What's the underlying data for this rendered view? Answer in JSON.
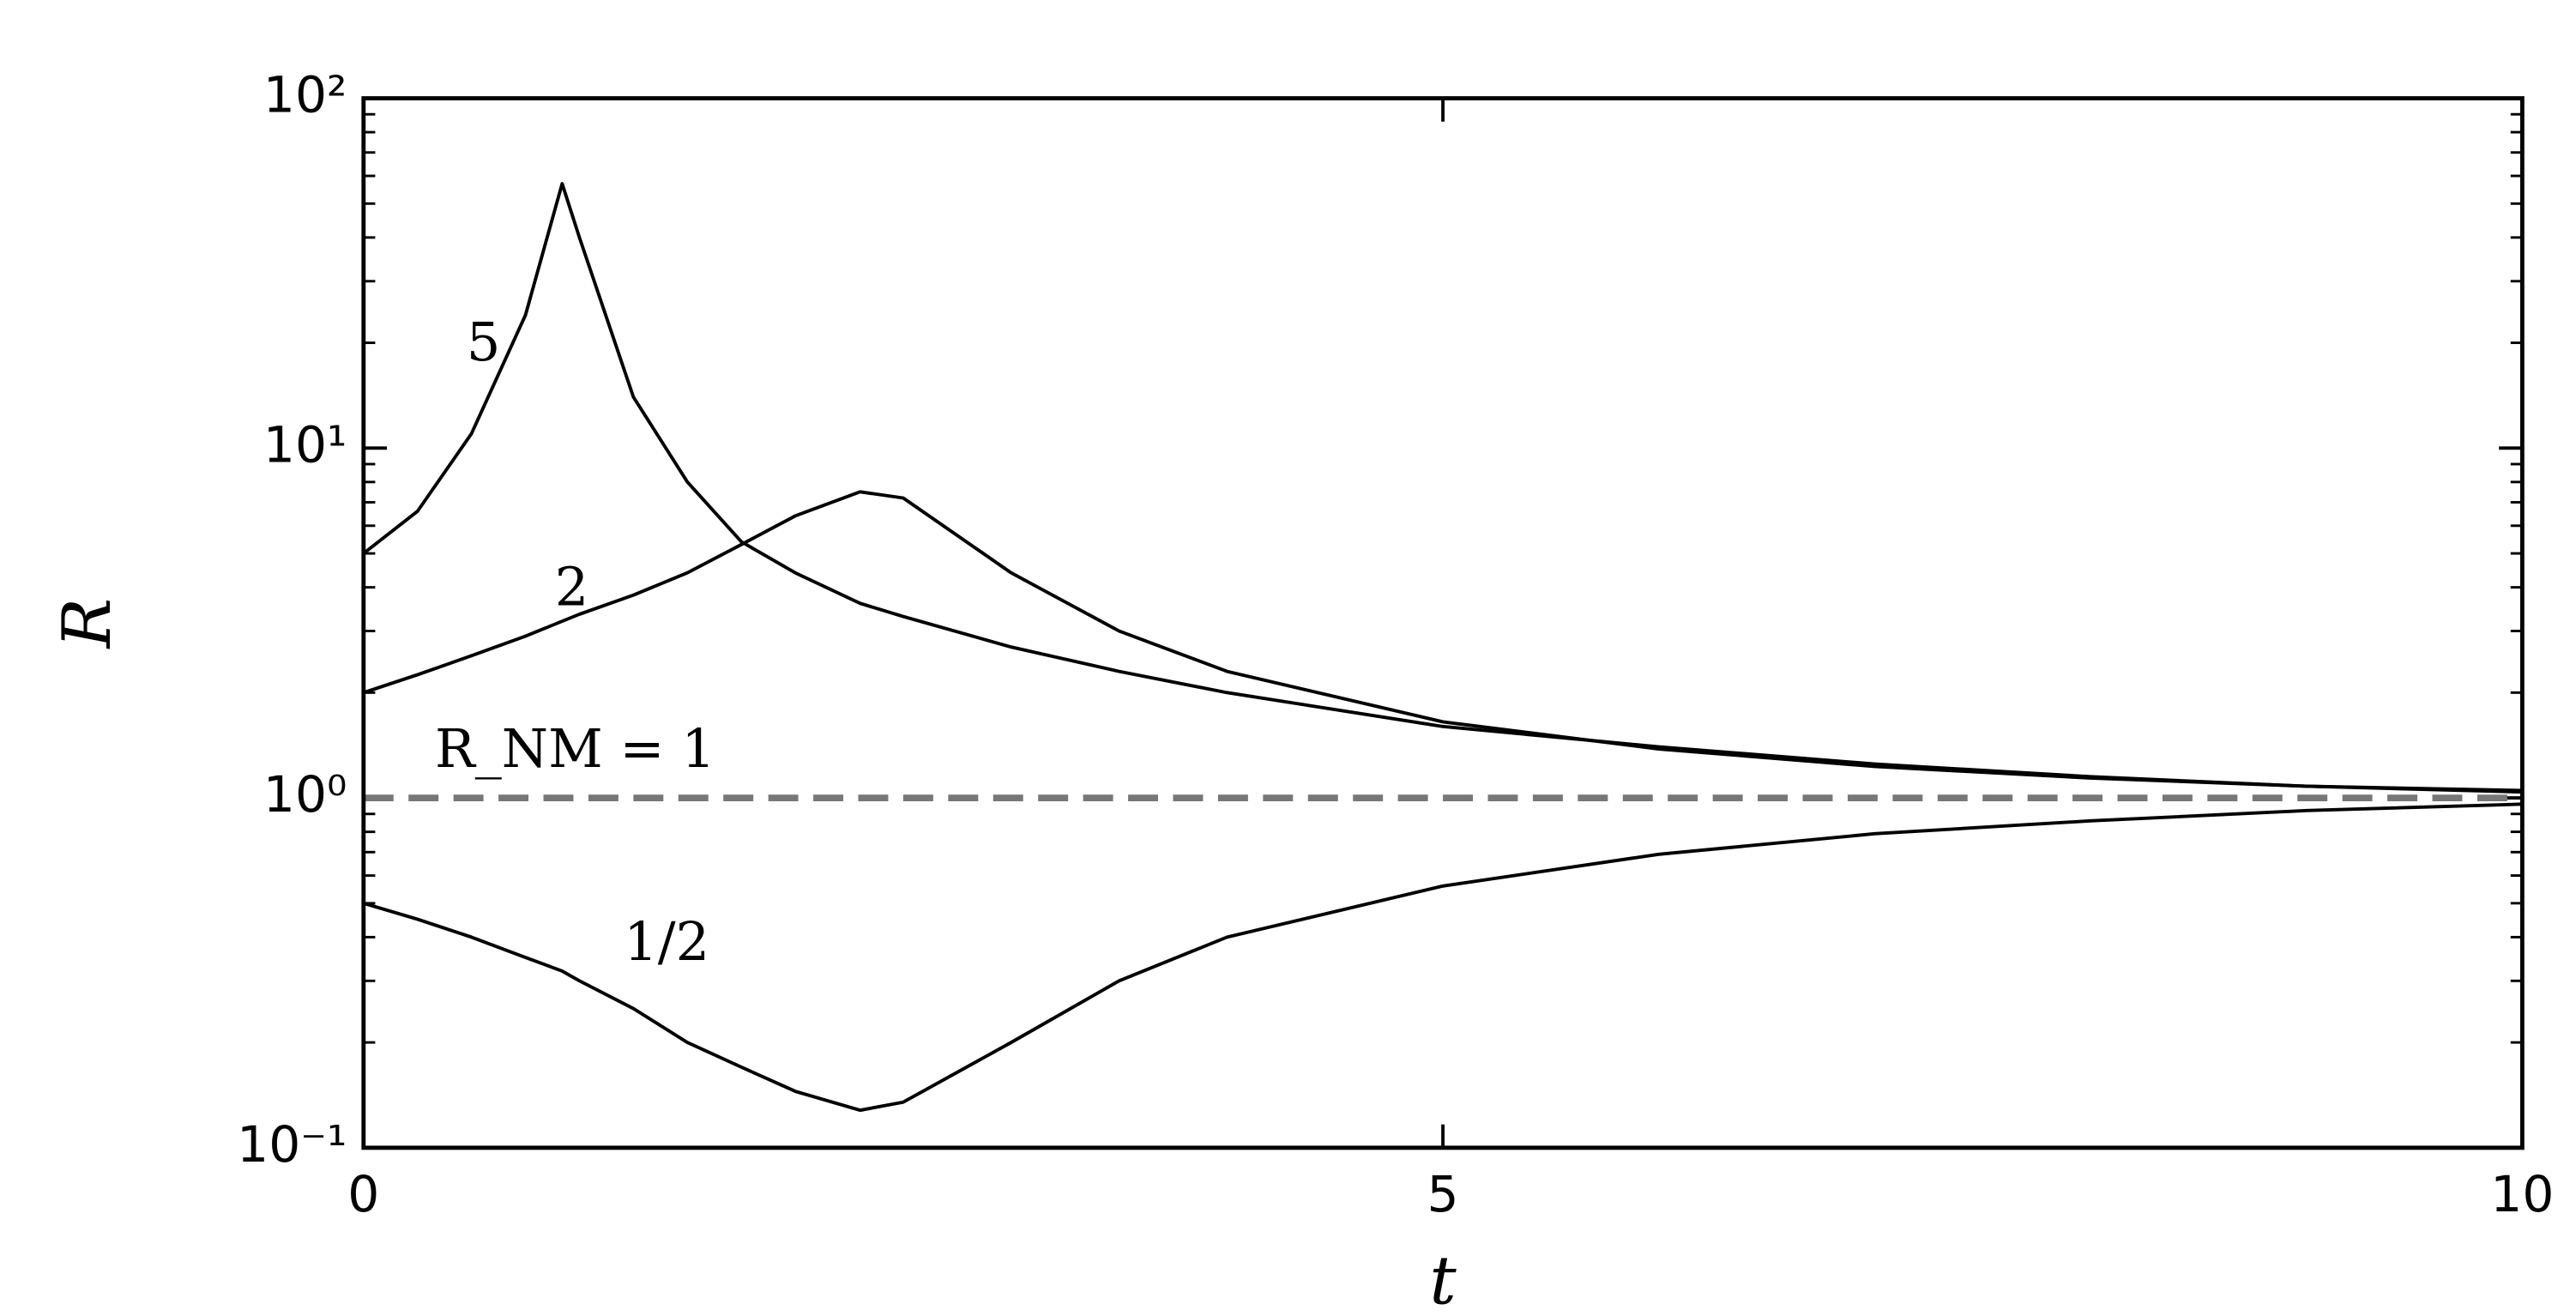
{
  "chart_data": {
    "type": "line",
    "xlabel": "t",
    "ylabel": "R",
    "x": [
      0,
      0.25,
      0.5,
      0.75,
      0.92,
      1,
      1.25,
      1.5,
      1.75,
      2,
      2.3,
      2.5,
      3,
      3.5,
      4,
      5,
      6,
      7,
      8,
      9,
      10
    ],
    "series": [
      {
        "name": "5",
        "color": "#000000",
        "dashed": false,
        "values": [
          5,
          6.6,
          11,
          24,
          57,
          40,
          14,
          8,
          5.4,
          4.4,
          3.6,
          3.3,
          2.7,
          2.3,
          2.0,
          1.6,
          1.4,
          1.25,
          1.15,
          1.08,
          1.04
        ]
      },
      {
        "name": "2",
        "color": "#000000",
        "dashed": false,
        "values": [
          2,
          2.25,
          2.55,
          2.9,
          3.2,
          3.35,
          3.8,
          4.4,
          5.3,
          6.4,
          7.5,
          7.2,
          4.4,
          3.0,
          2.3,
          1.65,
          1.38,
          1.23,
          1.14,
          1.08,
          1.05
        ]
      },
      {
        "name": "1/2",
        "color": "#000000",
        "dashed": false,
        "values": [
          0.5,
          0.45,
          0.4,
          0.35,
          0.32,
          0.3,
          0.25,
          0.2,
          0.17,
          0.145,
          0.128,
          0.135,
          0.2,
          0.3,
          0.4,
          0.56,
          0.69,
          0.79,
          0.86,
          0.92,
          0.96
        ]
      },
      {
        "name": "R_NM = 1",
        "color": "#777777",
        "dashed": true,
        "values": [
          1,
          1,
          1,
          1,
          1,
          1,
          1,
          1,
          1,
          1,
          1,
          1,
          1,
          1,
          1,
          1,
          1,
          1,
          1,
          1,
          1
        ]
      }
    ],
    "xlim": [
      0,
      10
    ],
    "xticks": [
      0,
      5,
      10
    ],
    "ylim": [
      0.1,
      100
    ],
    "ylog": true,
    "yticks": [
      {
        "value": 0.1,
        "label": "10⁻¹"
      },
      {
        "value": 1,
        "label": "10⁰"
      },
      {
        "value": 10,
        "label": "10¹"
      },
      {
        "value": 100,
        "label": "10²"
      }
    ]
  }
}
